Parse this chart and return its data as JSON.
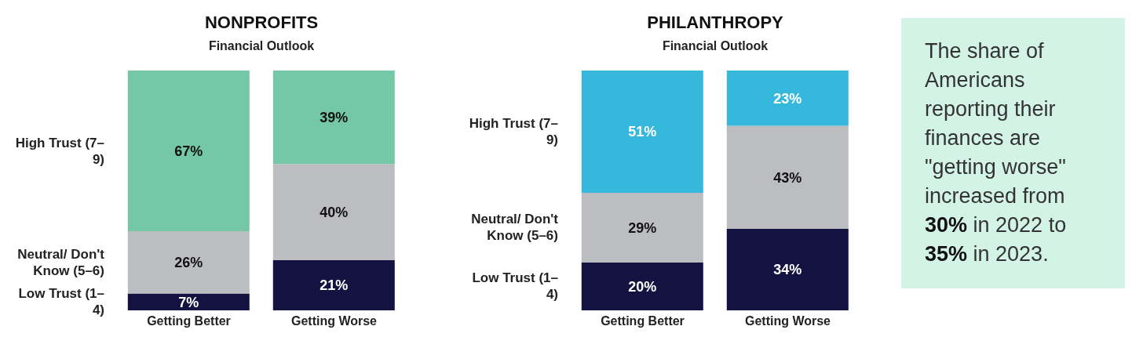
{
  "chart_data": [
    {
      "type": "bar",
      "stacked": true,
      "title": "NONPROFITS",
      "subtitle": "Financial Outlook",
      "categories": [
        "Getting Better",
        "Getting Worse"
      ],
      "tick_labels": "x",
      "legend": false,
      "series": [
        {
          "name": "Low Trust (1–4)",
          "color": "#141240",
          "values": [
            7,
            21
          ],
          "value_labels": [
            "7%",
            "21%"
          ]
        },
        {
          "name": "Neutral/ Don't Know (5–6)",
          "color": "#bcbdc1",
          "values": [
            26,
            40
          ],
          "value_labels": [
            "26%",
            "40%"
          ]
        },
        {
          "name": "High Trust (7–9)",
          "color": "#74c8a8",
          "values": [
            67,
            39
          ],
          "value_labels": [
            "67%",
            "39%"
          ]
        }
      ]
    },
    {
      "type": "bar",
      "stacked": true,
      "title": "PHILANTHROPY",
      "subtitle": "Financial Outlook",
      "categories": [
        "Getting Better",
        "Getting Worse"
      ],
      "tick_labels": "x",
      "legend": false,
      "series": [
        {
          "name": "Low Trust (1–4)",
          "color": "#141240",
          "values": [
            20,
            34
          ],
          "value_labels": [
            "20%",
            "34%"
          ]
        },
        {
          "name": "Neutral/ Don't Know (5–6)",
          "color": "#bcbdc1",
          "values": [
            29,
            43
          ],
          "value_labels": [
            "29%",
            "43%"
          ]
        },
        {
          "name": "High Trust (7–9)",
          "color": "#35b8dc",
          "values": [
            51,
            23
          ],
          "value_labels": [
            "51%",
            "23%"
          ]
        }
      ]
    },
    {
      "type": "other",
      "annotations": [
        "The share of Americans reporting their finances are \"getting worse\" increased from 30% in 2022 to 35% in 2023."
      ]
    }
  ]
}
